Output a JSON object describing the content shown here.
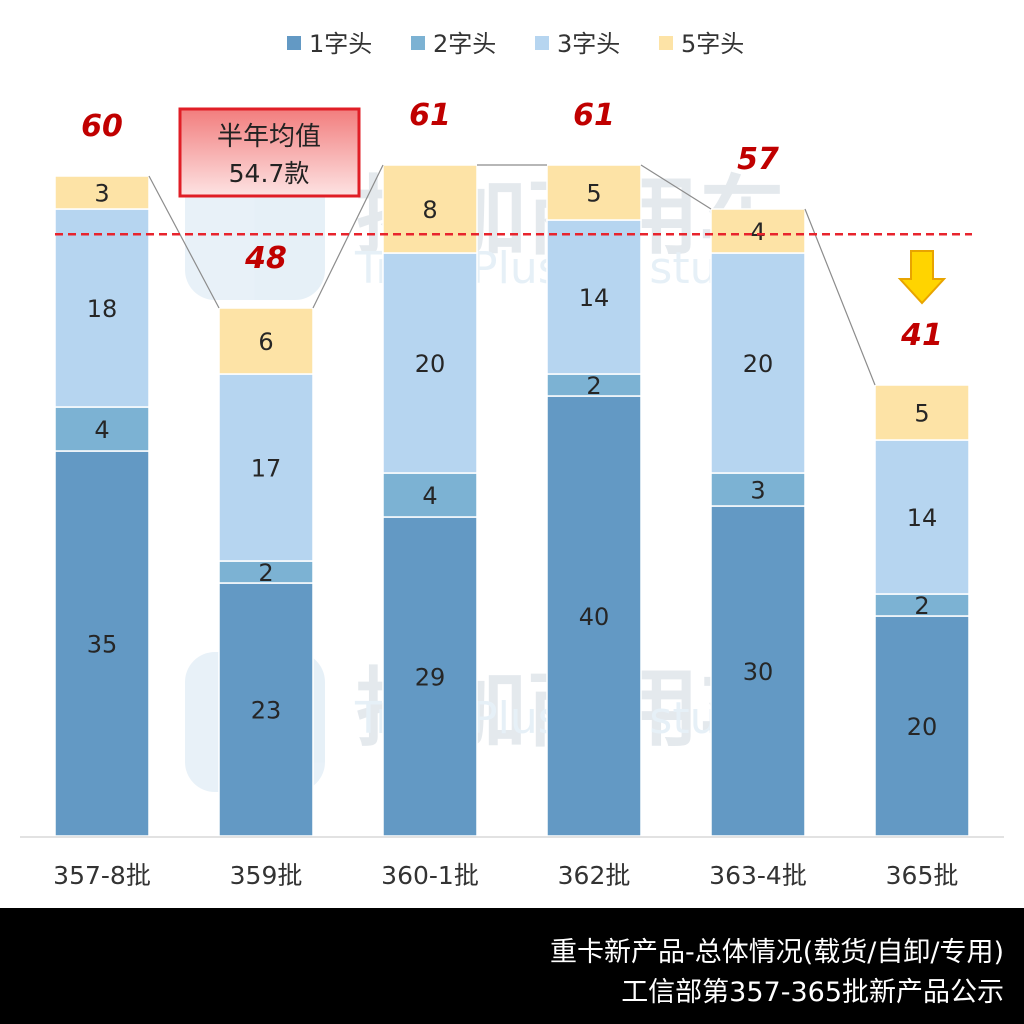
{
  "chart_data": {
    "type": "bar",
    "stacked": true,
    "categories": [
      "357-8批",
      "359批",
      "360-1批",
      "362批",
      "363-4批",
      "365批"
    ],
    "series": [
      {
        "name": "1字头",
        "color": "#6399c4",
        "values": [
          35,
          23,
          29,
          40,
          30,
          20
        ]
      },
      {
        "name": "2字头",
        "color": "#7cb2d3",
        "values": [
          4,
          2,
          4,
          2,
          3,
          2
        ]
      },
      {
        "name": "3字头",
        "color": "#b6d5f0",
        "values": [
          18,
          17,
          20,
          14,
          20,
          14
        ]
      },
      {
        "name": "5字头",
        "color": "#fde3a6",
        "values": [
          3,
          6,
          8,
          5,
          4,
          5
        ]
      }
    ],
    "totals": [
      60,
      48,
      61,
      61,
      57,
      41
    ],
    "average": 54.7,
    "average_label": "半年均值",
    "average_value_label": "54.7款",
    "legend_position": "top",
    "grid": false
  },
  "watermark": {
    "cn": "揭加商用车",
    "en": "TruckPlus CV studio"
  },
  "footer": {
    "line1": "重卡新产品-总体情况(载货/自卸/专用)",
    "line2": "工信部第357-365批新产品公示"
  }
}
